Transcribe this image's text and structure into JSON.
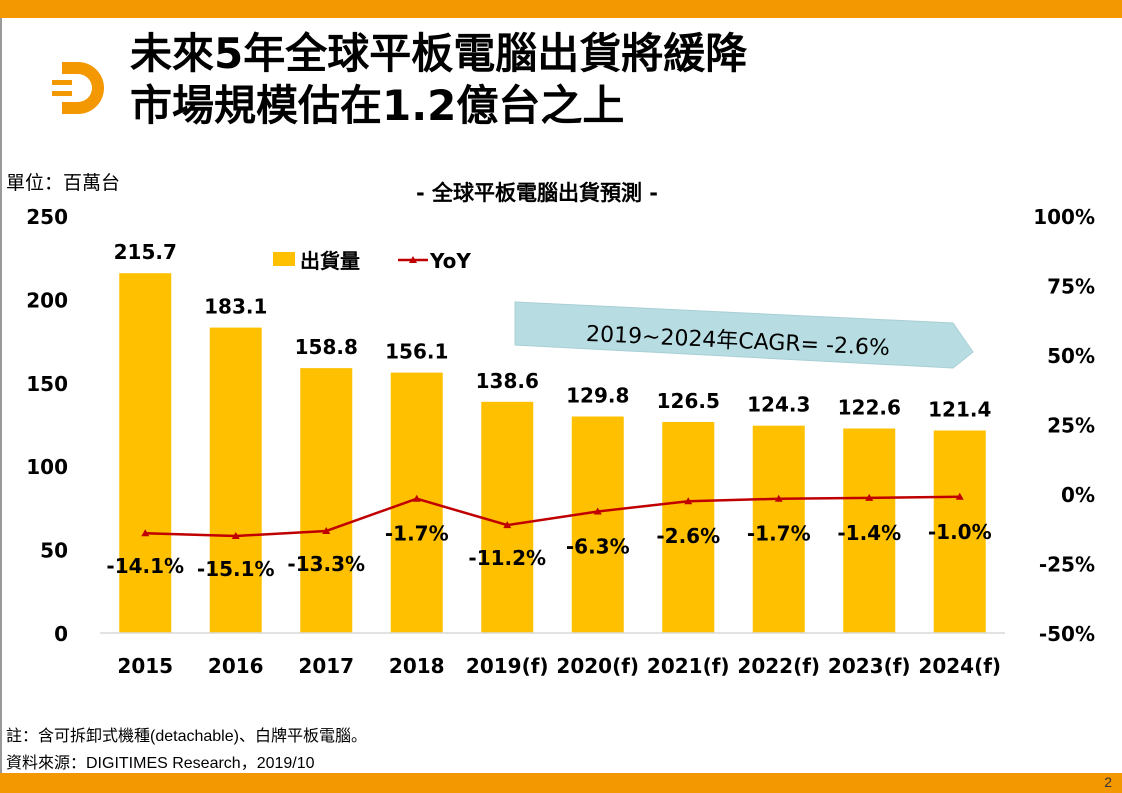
{
  "slide": {
    "title_line1": "未來5年全球平板電腦出貨將緩降",
    "title_line2": "市場規模估在1.2億台之上",
    "unit_label": "單位：百萬台",
    "note": "註：含可拆卸式機種(detachable)、白牌平板電腦。",
    "source": "資料來源：DIGITIMES Research，2019/10",
    "page_number": "2",
    "logo_letter": "D",
    "colors": {
      "bar_accent": "#f39800",
      "bar": "#ffc000",
      "line": "#c00000",
      "callout": "#b7dde3"
    }
  },
  "chart_data": {
    "type": "bar+line",
    "title": "- 全球平板電腦出貨預測 -",
    "categories": [
      "2015",
      "2016",
      "2017",
      "2018",
      "2019(f)",
      "2020(f)",
      "2021(f)",
      "2022(f)",
      "2023(f)",
      "2024(f)"
    ],
    "series": [
      {
        "name": "出貨量",
        "type": "bar",
        "axis": "left",
        "values": [
          215.7,
          183.1,
          158.8,
          156.1,
          138.6,
          129.8,
          126.5,
          124.3,
          122.6,
          121.4
        ],
        "labels": [
          "215.7",
          "183.1",
          "158.8",
          "156.1",
          "138.6",
          "129.8",
          "126.5",
          "124.3",
          "122.6",
          "121.4"
        ]
      },
      {
        "name": "YoY",
        "type": "line",
        "axis": "right",
        "values": [
          -14.1,
          -15.1,
          -13.3,
          -1.7,
          -11.2,
          -6.3,
          -2.6,
          -1.7,
          -1.4,
          -1.0
        ],
        "labels": [
          "-14.1%",
          "-15.1%",
          "-13.3%",
          "-1.7%",
          "-11.2%",
          "-6.3%",
          "-2.6%",
          "-1.7%",
          "-1.4%",
          "-1.0%"
        ]
      }
    ],
    "y_left": {
      "range": [
        0,
        250
      ],
      "ticks": [
        "0",
        "50",
        "100",
        "150",
        "200",
        "250"
      ]
    },
    "y_right": {
      "range": [
        -50,
        100
      ],
      "ticks": [
        "-50%",
        "-25%",
        "0%",
        "25%",
        "50%",
        "75%",
        "100%"
      ]
    },
    "legend": {
      "placement": "top",
      "items": [
        "出貨量",
        "YoY"
      ]
    },
    "annotation": "2019~2024年CAGR=  -2.6%",
    "grid": false
  }
}
